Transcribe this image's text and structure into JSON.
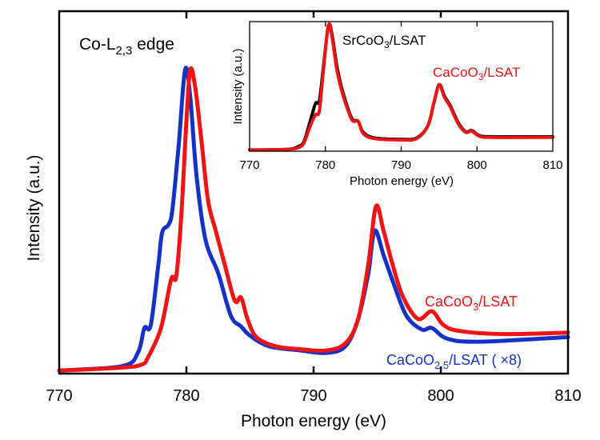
{
  "chart_data": [
    {
      "id": "main",
      "type": "line",
      "title": "",
      "annotation": {
        "main": "Co-L",
        "sub": "2,3",
        "tail": " edge"
      },
      "xlabel": "Photon energy (eV)",
      "ylabel": "Intensity (a.u.)",
      "xlim": [
        770,
        810
      ],
      "ylim": [
        0,
        1
      ],
      "xticks": [
        770,
        780,
        790,
        800,
        810
      ],
      "xtick_labels": [
        "770",
        "780",
        "790",
        "800",
        "810"
      ],
      "yticks": [],
      "grid": false,
      "series": [
        {
          "name": "CaCoO3/LSAT",
          "label": {
            "pre": "CaCoO",
            "sub": "3",
            "post": "/LSAT"
          },
          "color": "#f01414",
          "x": [
            770,
            775,
            776.5,
            777,
            778,
            778.8,
            779.2,
            779.6,
            780,
            780.3,
            780.7,
            781.2,
            781.7,
            782.3,
            783,
            783.8,
            784.3,
            784.8,
            785.5,
            787,
            789,
            791,
            792.5,
            793.5,
            794.3,
            794.9,
            795.5,
            796.2,
            797,
            798.2,
            799.3,
            800.2,
            801.5,
            805,
            810
          ],
          "y": [
            0.01,
            0.02,
            0.03,
            0.055,
            0.15,
            0.31,
            0.32,
            0.52,
            0.83,
            1.0,
            0.94,
            0.76,
            0.57,
            0.47,
            0.36,
            0.24,
            0.25,
            0.18,
            0.12,
            0.09,
            0.08,
            0.076,
            0.1,
            0.18,
            0.36,
            0.55,
            0.47,
            0.36,
            0.255,
            0.18,
            0.205,
            0.16,
            0.14,
            0.13,
            0.135
          ]
        },
        {
          "name": "CaCoO2.5/LSAT (×8)",
          "label": {
            "pre": "CaCoO",
            "sub": "2.5",
            "post": "/LSAT (  ×8)"
          },
          "color": "#1432c8",
          "x": [
            770,
            775,
            776.2,
            776.7,
            777.2,
            777.8,
            778.1,
            778.6,
            778.9,
            779.4,
            779.9,
            780.3,
            780.8,
            781.5,
            782.5,
            783.5,
            784.3,
            785,
            786.5,
            789,
            791,
            792.5,
            793.5,
            794.3,
            794.8,
            795.5,
            796.3,
            797.3,
            798.5,
            799.3,
            800.5,
            803,
            810
          ],
          "y": [
            0.01,
            0.025,
            0.07,
            0.15,
            0.16,
            0.36,
            0.465,
            0.49,
            0.54,
            0.755,
            1.0,
            0.91,
            0.65,
            0.44,
            0.33,
            0.19,
            0.155,
            0.125,
            0.09,
            0.076,
            0.068,
            0.09,
            0.18,
            0.33,
            0.47,
            0.39,
            0.295,
            0.19,
            0.145,
            0.15,
            0.115,
            0.105,
            0.12
          ]
        }
      ]
    },
    {
      "id": "inset",
      "type": "line",
      "title": "",
      "xlabel": "Photon energy (eV)",
      "ylabel": "Intensity (a.u.)",
      "xlim": [
        770,
        810
      ],
      "ylim": [
        0,
        1
      ],
      "xticks": [
        770,
        780,
        790,
        800,
        810
      ],
      "xtick_labels": [
        "770",
        "780",
        "790",
        "800",
        "810"
      ],
      "yticks": [],
      "grid": false,
      "series": [
        {
          "name": "SrCoO3/LSAT",
          "label": {
            "pre": "SrCoO",
            "sub": "3",
            "post": "/LSAT"
          },
          "color": "#000000",
          "x": [
            770,
            775,
            776.5,
            777.2,
            778,
            778.7,
            779.2,
            779.7,
            780.4,
            780.9,
            781.5,
            782.3,
            783.5,
            784.3,
            785,
            786.5,
            790,
            792,
            793.5,
            794.3,
            795,
            795.7,
            796.5,
            797.5,
            798.5,
            799.3,
            800.3,
            802,
            810
          ],
          "y": [
            0.01,
            0.015,
            0.04,
            0.08,
            0.24,
            0.38,
            0.4,
            0.65,
            1.0,
            0.92,
            0.68,
            0.47,
            0.26,
            0.24,
            0.15,
            0.105,
            0.095,
            0.105,
            0.2,
            0.38,
            0.53,
            0.44,
            0.36,
            0.23,
            0.155,
            0.165,
            0.125,
            0.115,
            0.115
          ]
        },
        {
          "name": "CaCoO3/LSAT",
          "label": {
            "pre": "CaCoO",
            "sub": "3",
            "post": "/LSAT"
          },
          "color": "#f01414",
          "x": [
            770,
            775,
            776.5,
            777.2,
            778,
            778.7,
            779.2,
            779.7,
            780.4,
            780.9,
            781.5,
            782.3,
            783.5,
            784.3,
            785,
            786.5,
            790,
            792,
            793.5,
            794.3,
            795,
            795.7,
            796.5,
            797.5,
            798.5,
            799.3,
            800.3,
            802,
            810
          ],
          "y": [
            0.01,
            0.015,
            0.03,
            0.07,
            0.2,
            0.29,
            0.32,
            0.62,
            1.0,
            0.9,
            0.65,
            0.45,
            0.25,
            0.24,
            0.14,
            0.1,
            0.09,
            0.1,
            0.2,
            0.38,
            0.53,
            0.43,
            0.35,
            0.22,
            0.15,
            0.16,
            0.12,
            0.11,
            0.11
          ]
        }
      ]
    }
  ]
}
